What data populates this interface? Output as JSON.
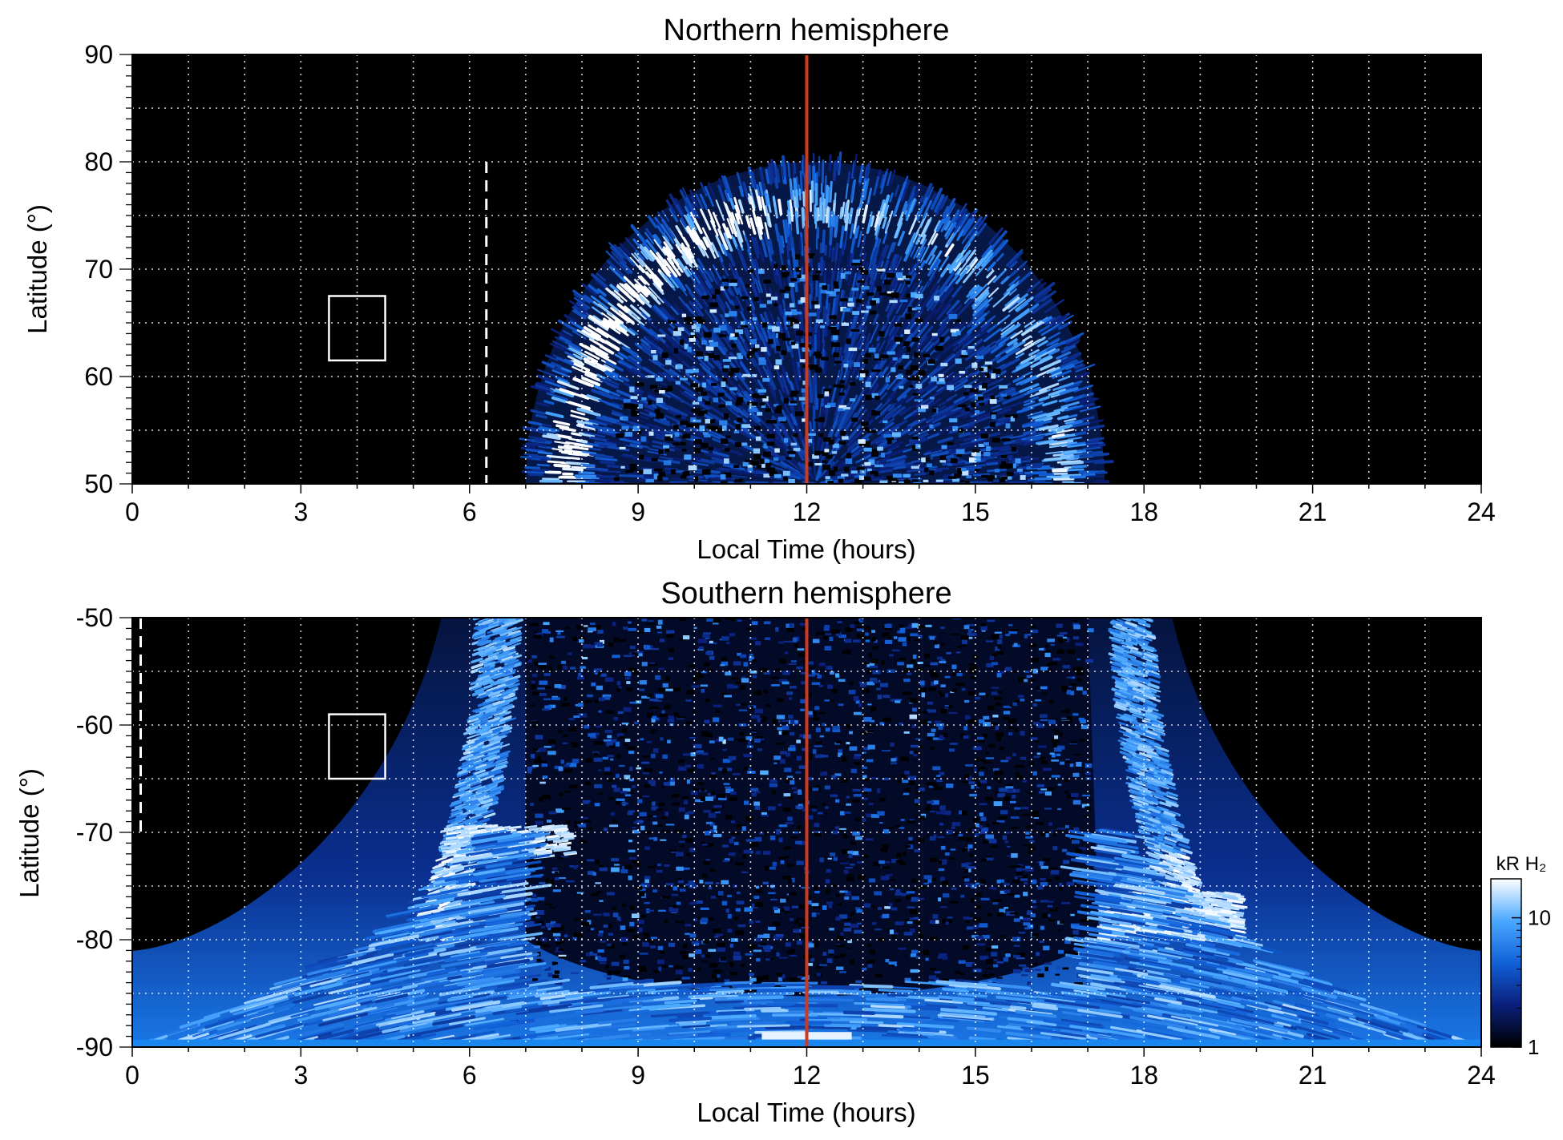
{
  "chart_data": [
    {
      "type": "heatmap",
      "title": "Northern hemisphere",
      "xlabel": "Local Time (hours)",
      "ylabel": "Latitude (°)",
      "xlim": [
        0,
        24
      ],
      "ylim": [
        50,
        90
      ],
      "xticks": [
        "0",
        "3",
        "6",
        "9",
        "12",
        "15",
        "18",
        "21",
        "24"
      ],
      "yticks": [
        "50",
        "60",
        "70",
        "80",
        "90"
      ],
      "grid": true,
      "reference_line_lt": 12,
      "dashed_line": {
        "lt": 6.3,
        "lat_from": 50,
        "lat_to": 80
      },
      "box": {
        "lt_from": 3.5,
        "lt_to": 4.5,
        "lat_from": 61.5,
        "lat_to": 67.5
      },
      "emission_region": {
        "lt_from": 7.0,
        "lt_to": 17.3,
        "lat_max": 80
      },
      "main_oval": {
        "center_lt": 12.0,
        "half_width_lt": 3.1,
        "lat_top": 77,
        "lat_bottom": 68
      }
    },
    {
      "type": "heatmap",
      "title": "Southern hemisphere",
      "xlabel": "Local Time (hours)",
      "ylabel": "Latitude (°)",
      "xlim": [
        0,
        24
      ],
      "ylim": [
        -90,
        -50
      ],
      "xticks": [
        "0",
        "3",
        "6",
        "9",
        "12",
        "15",
        "18",
        "21",
        "24"
      ],
      "yticks": [
        "-90",
        "-80",
        "-70",
        "-60",
        "-50"
      ],
      "grid": true,
      "reference_line_lt": 12,
      "dashed_line": {
        "lt": 0.15,
        "lat_from": -70,
        "lat_to": -50
      },
      "box": {
        "lt_from": 3.5,
        "lt_to": 4.5,
        "lat_from": -65,
        "lat_to": -59
      },
      "emission_region": {
        "lt_from": 5.5,
        "lt_to": 18.5,
        "lat_top": -50
      },
      "main_oval": {
        "left_lt": 6.5,
        "right_lt": 17.8
      }
    }
  ],
  "colorbar": {
    "label": "kR H₂",
    "scale": "log",
    "range": [
      1,
      20
    ],
    "ticks": [
      "1",
      "10"
    ],
    "colors": [
      "#000000",
      "#0a1f7a",
      "#1160d8",
      "#4aa8ff",
      "#ffffff"
    ]
  },
  "colors": {
    "reference_line": "#d03a1a",
    "background": "#000000",
    "grid": "#ffffff"
  }
}
